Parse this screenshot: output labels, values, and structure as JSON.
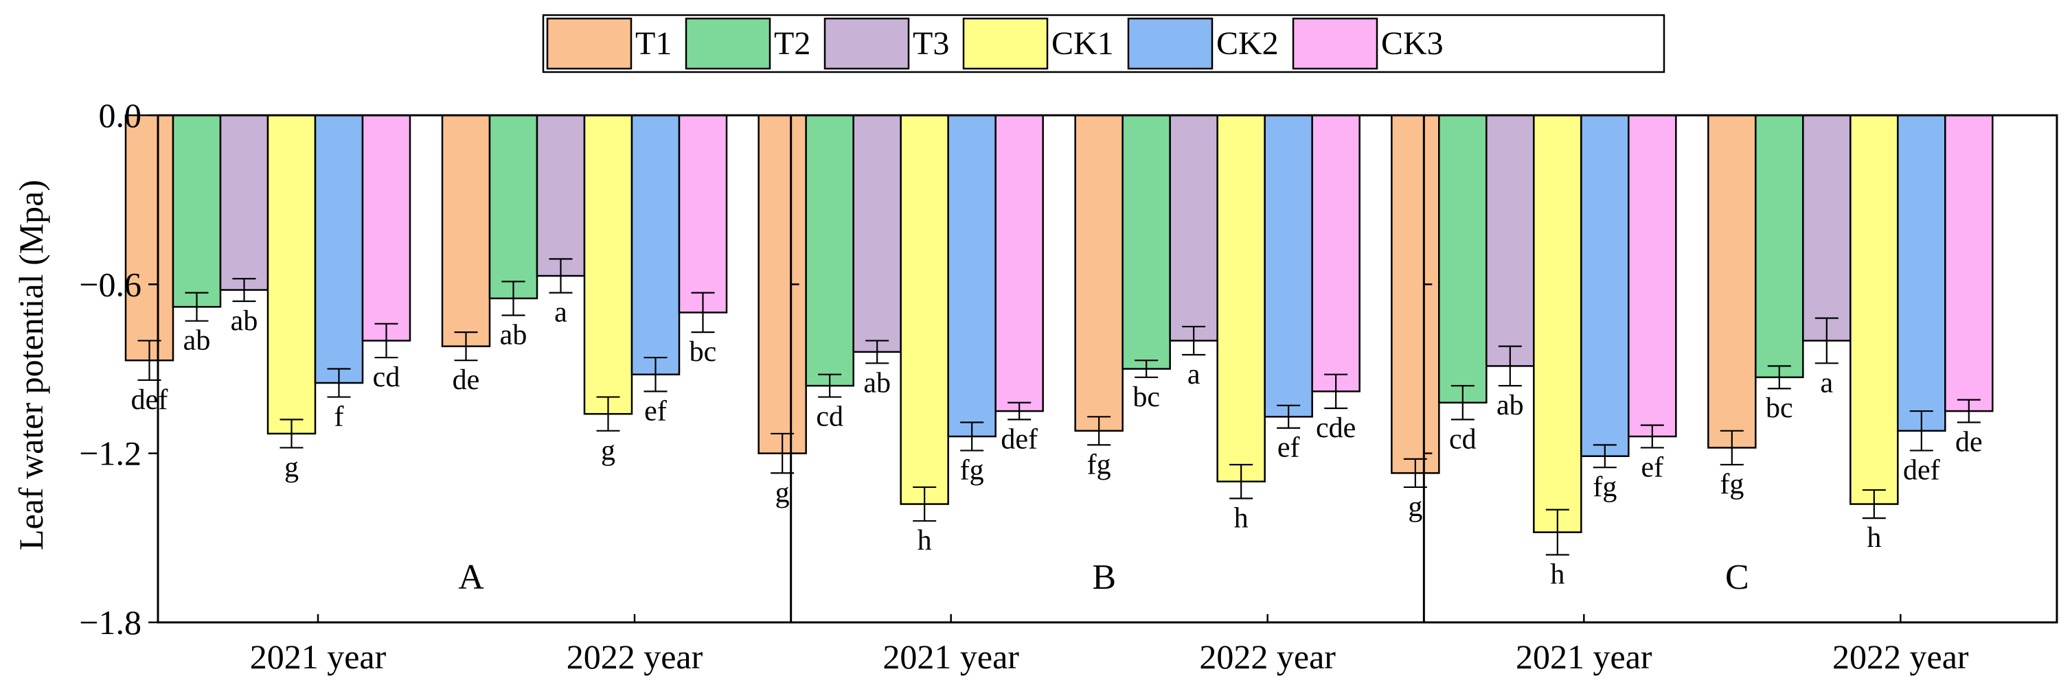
{
  "chart_data": {
    "type": "bar",
    "ylabel": "Leaf water potential (Mpa)",
    "ylim": [
      -1.8,
      0.0
    ],
    "yticks": [
      0.0,
      -0.6,
      -1.2,
      -1.8
    ],
    "ytick_labels": [
      "0.0",
      "−0.6",
      "−1.2",
      "−1.8"
    ],
    "legend": {
      "position": "top-center",
      "entries": [
        {
          "name": "T1",
          "color": "#FBC08F"
        },
        {
          "name": "T2",
          "color": "#7DD99A"
        },
        {
          "name": "T3",
          "color": "#C8B2D6"
        },
        {
          "name": "CK1",
          "color": "#FFFF88"
        },
        {
          "name": "CK2",
          "color": "#88B9F4"
        },
        {
          "name": "CK3",
          "color": "#FDB2F5"
        }
      ]
    },
    "panels": [
      {
        "label": "A",
        "groups": [
          {
            "category": "2021 year",
            "values": [
              -0.87,
              -0.68,
              -0.62,
              -1.13,
              -0.95,
              -0.8
            ],
            "errors": [
              0.07,
              0.05,
              0.04,
              0.05,
              0.05,
              0.06
            ],
            "letters": [
              "def",
              "ab",
              "ab",
              "g",
              "f",
              "cd"
            ]
          },
          {
            "category": "2022 year",
            "values": [
              -0.82,
              -0.65,
              -0.57,
              -1.06,
              -0.92,
              -0.7
            ],
            "errors": [
              0.05,
              0.06,
              0.06,
              0.06,
              0.06,
              0.07
            ],
            "letters": [
              "de",
              "ab",
              "a",
              "g",
              "ef",
              "bc"
            ]
          }
        ]
      },
      {
        "label": "B",
        "groups": [
          {
            "category": "2021 year",
            "values": [
              -1.2,
              -0.96,
              -0.84,
              -1.38,
              -1.14,
              -1.05
            ],
            "errors": [
              0.07,
              0.04,
              0.04,
              0.06,
              0.05,
              0.03
            ],
            "letters": [
              "g",
              "cd",
              "ab",
              "h",
              "fg",
              "def"
            ]
          },
          {
            "category": "2022 year",
            "values": [
              -1.12,
              -0.9,
              -0.8,
              -1.3,
              -1.07,
              -0.98
            ],
            "errors": [
              0.05,
              0.03,
              0.05,
              0.06,
              0.04,
              0.06
            ],
            "letters": [
              "fg",
              "bc",
              "a",
              "h",
              "ef",
              "cde"
            ]
          }
        ]
      },
      {
        "label": "C",
        "groups": [
          {
            "category": "2021 year",
            "values": [
              -1.27,
              -1.02,
              -0.89,
              -1.48,
              -1.21,
              -1.14
            ],
            "errors": [
              0.05,
              0.06,
              0.07,
              0.08,
              0.04,
              0.04
            ],
            "letters": [
              "g",
              "cd",
              "ab",
              "h",
              "fg",
              "ef"
            ]
          },
          {
            "category": "2022 year",
            "values": [
              -1.18,
              -0.93,
              -0.8,
              -1.38,
              -1.12,
              -1.05
            ],
            "errors": [
              0.06,
              0.04,
              0.08,
              0.05,
              0.07,
              0.04
            ],
            "letters": [
              "fg",
              "bc",
              "a",
              "h",
              "def",
              "de"
            ]
          }
        ]
      }
    ]
  }
}
